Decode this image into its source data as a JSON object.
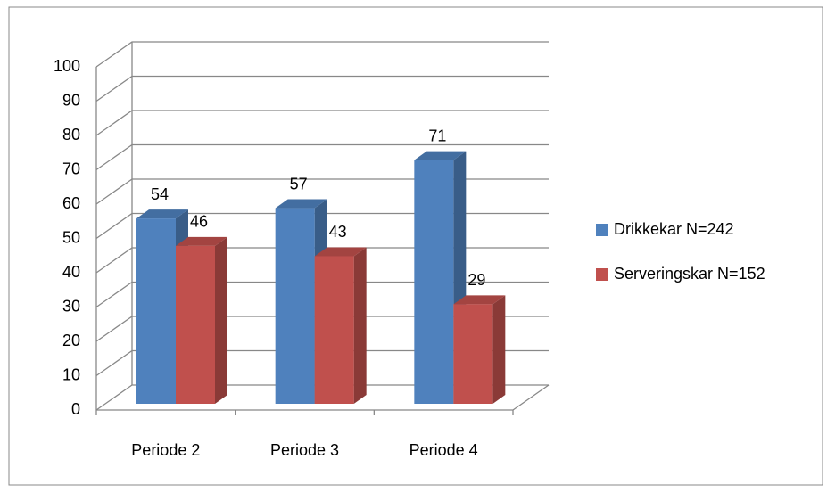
{
  "chart_data": {
    "type": "bar3d",
    "categories": [
      "Periode 2",
      "Periode 3",
      "Periode 4"
    ],
    "series": [
      {
        "name": "Drikkekar N=242",
        "color": "#4f81bd",
        "values": [
          54,
          57,
          71
        ]
      },
      {
        "name": "Serveringskar N=152",
        "color": "#c0504d",
        "values": [
          46,
          43,
          29
        ]
      }
    ],
    "ylim": [
      0,
      100
    ],
    "yticks": [
      0,
      10,
      20,
      30,
      40,
      50,
      60,
      70,
      80,
      90,
      100
    ],
    "grid": true,
    "legend": "right"
  }
}
